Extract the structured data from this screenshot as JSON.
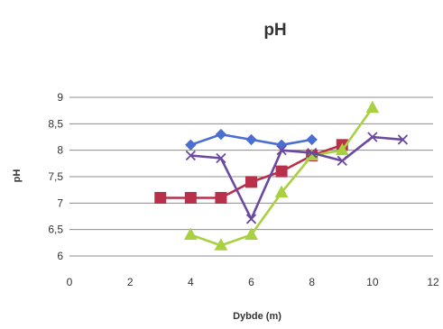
{
  "chart_data": {
    "type": "line",
    "title": "pH",
    "xlabel": "Dybde (m)",
    "ylabel": "pH",
    "xlim": [
      0,
      12
    ],
    "ylim": [
      6,
      9
    ],
    "xticks": [
      0,
      2,
      4,
      6,
      8,
      10,
      12
    ],
    "yticks": [
      6,
      6.5,
      7,
      7.5,
      8,
      8.5,
      9
    ],
    "xtick_labels": [
      "0",
      "2",
      "4",
      "6",
      "8",
      "10",
      "12"
    ],
    "ytick_labels": [
      "6",
      "6,5",
      "7",
      "7,5",
      "8",
      "8,5",
      "9"
    ],
    "grid": "horizontal",
    "legend": "none",
    "series": [
      {
        "color": "#4A6FD0",
        "marker": "diamond",
        "x": [
          4,
          5,
          6,
          7,
          8
        ],
        "y": [
          8.1,
          8.3,
          8.2,
          8.1,
          8.2
        ]
      },
      {
        "color": "#B8304A",
        "marker": "square",
        "x": [
          3,
          4,
          5,
          6,
          7,
          8,
          9
        ],
        "y": [
          7.1,
          7.1,
          7.1,
          7.4,
          7.6,
          7.9,
          8.1
        ]
      },
      {
        "color": "#A8D040",
        "marker": "triangle",
        "x": [
          4,
          5,
          6,
          7,
          8,
          9,
          10
        ],
        "y": [
          6.4,
          6.2,
          6.4,
          7.2,
          7.9,
          8.0,
          8.8
        ]
      },
      {
        "color": "#6A4AA0",
        "marker": "x",
        "x": [
          4,
          5,
          6,
          7,
          8,
          9,
          10,
          11
        ],
        "y": [
          7.9,
          7.85,
          6.7,
          8.0,
          7.95,
          7.8,
          8.25,
          8.2
        ]
      }
    ]
  }
}
